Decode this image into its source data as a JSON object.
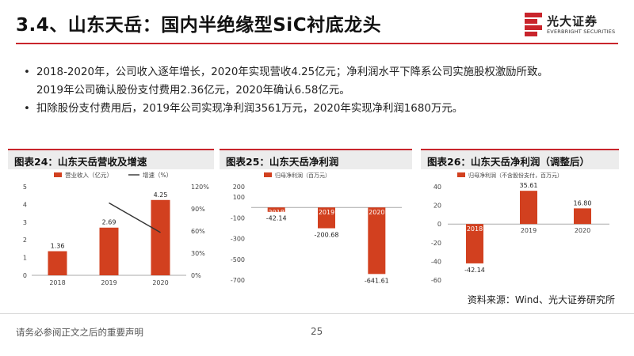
{
  "title": "3.4、山东天岳：国内半绝缘型SiC衬底龙头",
  "logo": {
    "name": "光大证券",
    "sub": "EVERBRIGHT SECURITIES"
  },
  "bullets": [
    {
      "marker": "•",
      "lines": [
        "2018-2020年，公司收入逐年增长，2020年实现营收4.25亿元；净利润水平下降系公司实施股权激励所致。",
        "2019年公司确认股份支付费用2.36亿元，2020年确认6.58亿元。"
      ]
    },
    {
      "marker": "•",
      "lines": [
        "扣除股份支付费用后，2019年公司实现净利润3561万元，2020年实现净利润1680万元。"
      ]
    }
  ],
  "panels": [
    {
      "title": "图表24：山东天岳营收及增速"
    },
    {
      "title": "图表25：山东天岳净利润"
    },
    {
      "title": "图表26：山东天岳净利润（调整后）"
    }
  ],
  "colors": {
    "accent": "#c9252c",
    "bar": "#d2401f",
    "line": "#333333"
  },
  "chart_data": [
    {
      "type": "bar",
      "title": "图表24：山东天岳营收及增速",
      "categories": [
        "2018",
        "2019",
        "2020"
      ],
      "series": [
        {
          "name": "营业收入（亿元）",
          "type": "bar",
          "axis": "left",
          "values": [
            1.36,
            2.69,
            4.25
          ],
          "labels": [
            "1.36",
            "2.69",
            "4.25"
          ]
        },
        {
          "name": "增速（%）",
          "type": "line",
          "axis": "right",
          "values": [
            null,
            98,
            58
          ]
        }
      ],
      "ylim": [
        0,
        5
      ],
      "yticks": [
        0,
        1,
        2,
        3,
        4,
        5
      ],
      "y2lim": [
        0,
        120
      ],
      "y2ticks": [
        "0%",
        "30%",
        "60%",
        "90%",
        "120%"
      ],
      "legend": "top"
    },
    {
      "type": "bar",
      "title": "图表25：山东天岳净利润",
      "categories": [
        "2018",
        "2019",
        "2020"
      ],
      "series": [
        {
          "name": "归母净利润（百万元）",
          "values": [
            -42.14,
            -200.68,
            -641.61
          ],
          "labels": [
            "-42.14",
            "-200.68",
            "-641.61"
          ]
        }
      ],
      "ylim": [
        -700,
        200
      ],
      "yticks": [
        200,
        100,
        -100,
        -300,
        -500,
        -700
      ],
      "legend": "top"
    },
    {
      "type": "bar",
      "title": "图表26：山东天岳净利润（调整后）",
      "categories": [
        "2018",
        "2019",
        "2020"
      ],
      "series": [
        {
          "name": "归母净利润（不含股份支付，百万元）",
          "values": [
            -42.14,
            35.61,
            16.8
          ],
          "labels": [
            "-42.14",
            "35.61",
            "16.80"
          ]
        }
      ],
      "ylim": [
        -60,
        40
      ],
      "yticks": [
        40,
        20,
        0,
        -20,
        -40,
        -60
      ],
      "legend": "top"
    }
  ],
  "source": "资料来源：Wind、光大证券研究所",
  "footer": "请务必参阅正文之后的重要声明",
  "page_number": "25"
}
